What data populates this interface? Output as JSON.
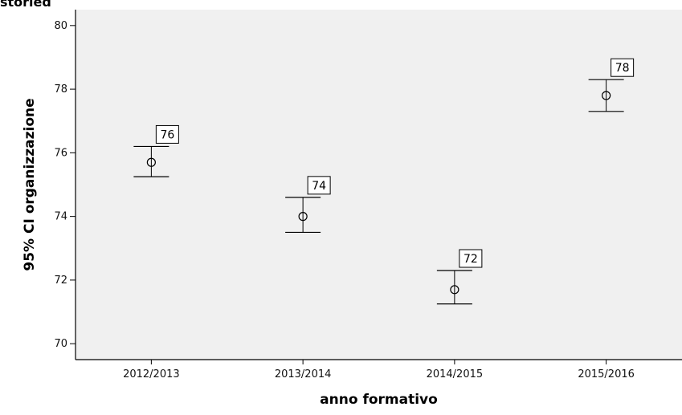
{
  "header": {
    "clipped_text": "storied"
  },
  "chart_data": {
    "type": "scatter",
    "title": "",
    "xlabel": "anno formativo",
    "ylabel": "95% CI organizzazione",
    "categories": [
      "2012/2013",
      "2013/2014",
      "2014/2015",
      "2015/2016"
    ],
    "series": [
      {
        "mean": [
          75.7,
          74.0,
          71.7,
          77.8
        ],
        "ci_low": [
          75.25,
          73.5,
          71.25,
          77.3
        ],
        "ci_high": [
          76.2,
          74.6,
          72.3,
          78.3
        ],
        "labels": [
          "76",
          "74",
          "72",
          "78"
        ]
      }
    ],
    "ylim": [
      69.5,
      80.5
    ],
    "yticks": [
      "70",
      "72",
      "74",
      "76",
      "78",
      "80"
    ],
    "grid": false,
    "plot_background": "#f0f0f0"
  }
}
